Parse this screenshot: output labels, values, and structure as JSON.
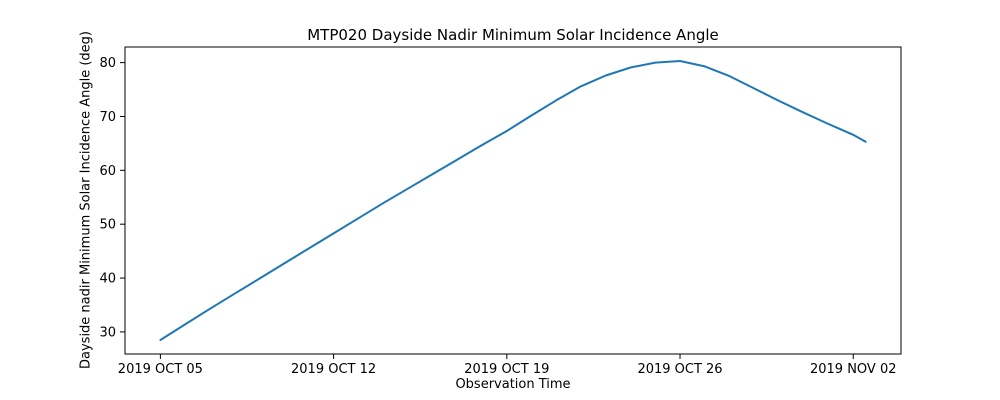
{
  "chart_data": {
    "type": "line",
    "title": "MTP020 Dayside Nadir Minimum Solar Incidence Angle",
    "xlabel": "Observation Time",
    "ylabel": "Dayside nadir Minimum Solar Incidence Angle (deg)",
    "x_encoding": "days after 2019 OCT 05",
    "x": [
      0,
      1,
      2,
      3,
      4,
      5,
      6,
      7,
      8,
      9,
      10,
      11,
      12,
      13,
      14,
      15,
      16,
      17,
      18,
      19,
      20,
      21,
      22,
      23,
      24,
      25,
      26,
      27,
      28,
      28.5
    ],
    "series": [
      {
        "name": "dayside-nadir-minimum-solar-incidence-angle",
        "color": "#1f77b4",
        "values": [
          28.5,
          31.4,
          34.3,
          37.1,
          39.9,
          42.7,
          45.5,
          48.3,
          51.1,
          53.9,
          56.6,
          59.3,
          62.0,
          64.7,
          67.3,
          70.2,
          73.0,
          75.6,
          77.6,
          79.1,
          80.0,
          80.3,
          79.3,
          77.5,
          75.2,
          72.9,
          70.7,
          68.6,
          66.6,
          65.3
        ]
      }
    ],
    "x_ticks": {
      "positions": [
        0,
        7,
        14,
        21,
        28
      ],
      "labels": [
        "2019 OCT 05",
        "2019 OCT 12",
        "2019 OCT 19",
        "2019 OCT 26",
        "2019 NOV 02"
      ]
    },
    "y_ticks": [
      30,
      40,
      50,
      60,
      70,
      80
    ],
    "xlim": [
      -1.43,
      29.93
    ],
    "ylim": [
      25.9,
      82.9
    ],
    "grid": false,
    "legend": null,
    "axis_color": "#000000",
    "background_color": "#ffffff"
  }
}
